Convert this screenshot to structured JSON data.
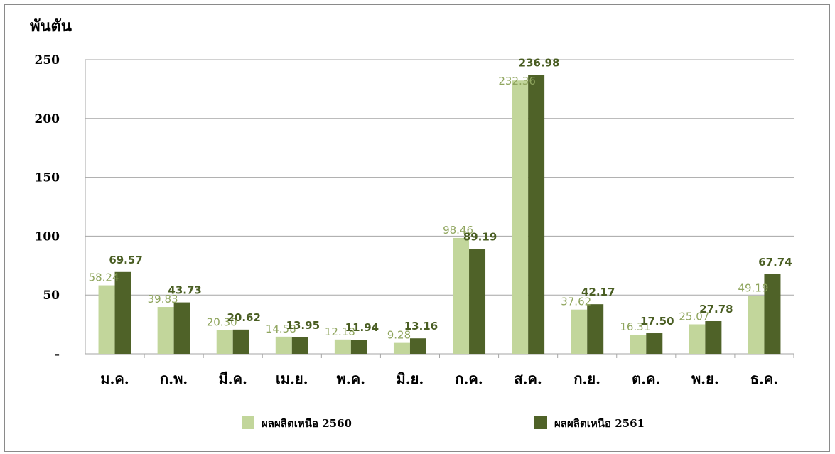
{
  "chart_data": {
    "type": "bar",
    "unit_label": "พันตัน",
    "categories": [
      "ม.ค.",
      "ก.พ.",
      "มี.ค.",
      "เม.ย.",
      "พ.ค.",
      "มิ.ย.",
      "ก.ค.",
      "ส.ค.",
      "ก.ย.",
      "ต.ค.",
      "พ.ย.",
      "ธ.ค."
    ],
    "series": [
      {
        "name": "ผลผลิตเหนือ 2560",
        "color": "#c2d69b",
        "values": [
          58.24,
          39.83,
          20.3,
          14.58,
          12.18,
          9.28,
          98.46,
          232.36,
          37.62,
          16.31,
          25.07,
          49.19
        ],
        "labels": [
          "58.24",
          "39.83",
          "20.30",
          "14.58",
          "12.18",
          "9.28",
          "98.46",
          "232.36",
          "37.62",
          "16.31",
          "25.07",
          "49.19"
        ]
      },
      {
        "name": "ผลผลิตเหนือ 2561",
        "color": "#4f6228",
        "values": [
          69.57,
          43.73,
          20.62,
          13.95,
          11.94,
          13.16,
          89.19,
          236.98,
          42.17,
          17.5,
          27.78,
          67.74
        ],
        "labels": [
          "69.57",
          "43.73",
          "20.62",
          "13.95",
          "11.94",
          "13.16",
          "89.19",
          "236.98",
          "42.17",
          "17.50",
          "27.78",
          "67.74"
        ]
      }
    ],
    "ylim": [
      0,
      250
    ],
    "yticks": [
      0,
      50,
      100,
      150,
      200,
      250
    ],
    "ytick_labels": [
      "-",
      "50",
      "100",
      "150",
      "200",
      "250"
    ],
    "grid": true,
    "legend_position": "bottom"
  }
}
